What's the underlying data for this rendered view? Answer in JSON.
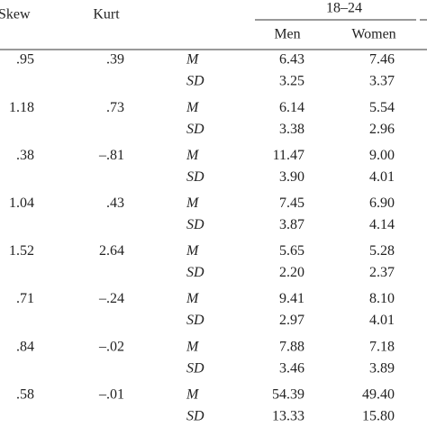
{
  "table": {
    "headers": {
      "skew": "Skew",
      "kurt": "Kurt",
      "group": "18–24",
      "men": "Men",
      "women": "Women"
    },
    "rows": [
      {
        "skew": ".95",
        "kurt": ".39",
        "lines": [
          {
            "stat": "M",
            "men": "6.43",
            "women": "7.46"
          },
          {
            "stat": "SD",
            "men": "3.25",
            "women": "3.37"
          }
        ]
      },
      {
        "skew": "1.18",
        "kurt": ".73",
        "lines": [
          {
            "stat": "M",
            "men": "6.14",
            "women": "5.54"
          },
          {
            "stat": "SD",
            "men": "3.38",
            "women": "2.96"
          }
        ]
      },
      {
        "skew": ".38",
        "kurt": "–.81",
        "lines": [
          {
            "stat": "M",
            "men": "11.47",
            "women": "9.00"
          },
          {
            "stat": "SD",
            "men": "3.90",
            "women": "4.01"
          }
        ]
      },
      {
        "skew": "1.04",
        "kurt": ".43",
        "lines": [
          {
            "stat": "M",
            "men": "7.45",
            "women": "6.90"
          },
          {
            "stat": "SD",
            "men": "3.87",
            "women": "4.14"
          }
        ]
      },
      {
        "skew": "1.52",
        "kurt": "2.64",
        "lines": [
          {
            "stat": "M",
            "men": "5.65",
            "women": "5.28"
          },
          {
            "stat": "SD",
            "men": "2.20",
            "women": "2.37"
          }
        ]
      },
      {
        "skew": ".71",
        "kurt": "–.24",
        "lines": [
          {
            "stat": "M",
            "men": "9.41",
            "women": "8.10"
          },
          {
            "stat": "SD",
            "men": "2.97",
            "women": "4.01"
          }
        ]
      },
      {
        "skew": ".84",
        "kurt": "–.02",
        "lines": [
          {
            "stat": "M",
            "men": "7.88",
            "women": "7.18"
          },
          {
            "stat": "SD",
            "men": "3.46",
            "women": "3.89"
          }
        ]
      },
      {
        "skew": ".58",
        "kurt": "–.01",
        "lines": [
          {
            "stat": "M",
            "men": "54.39",
            "women": "49.40"
          },
          {
            "stat": "SD",
            "men": "13.33",
            "women": "15.80"
          }
        ]
      }
    ]
  }
}
